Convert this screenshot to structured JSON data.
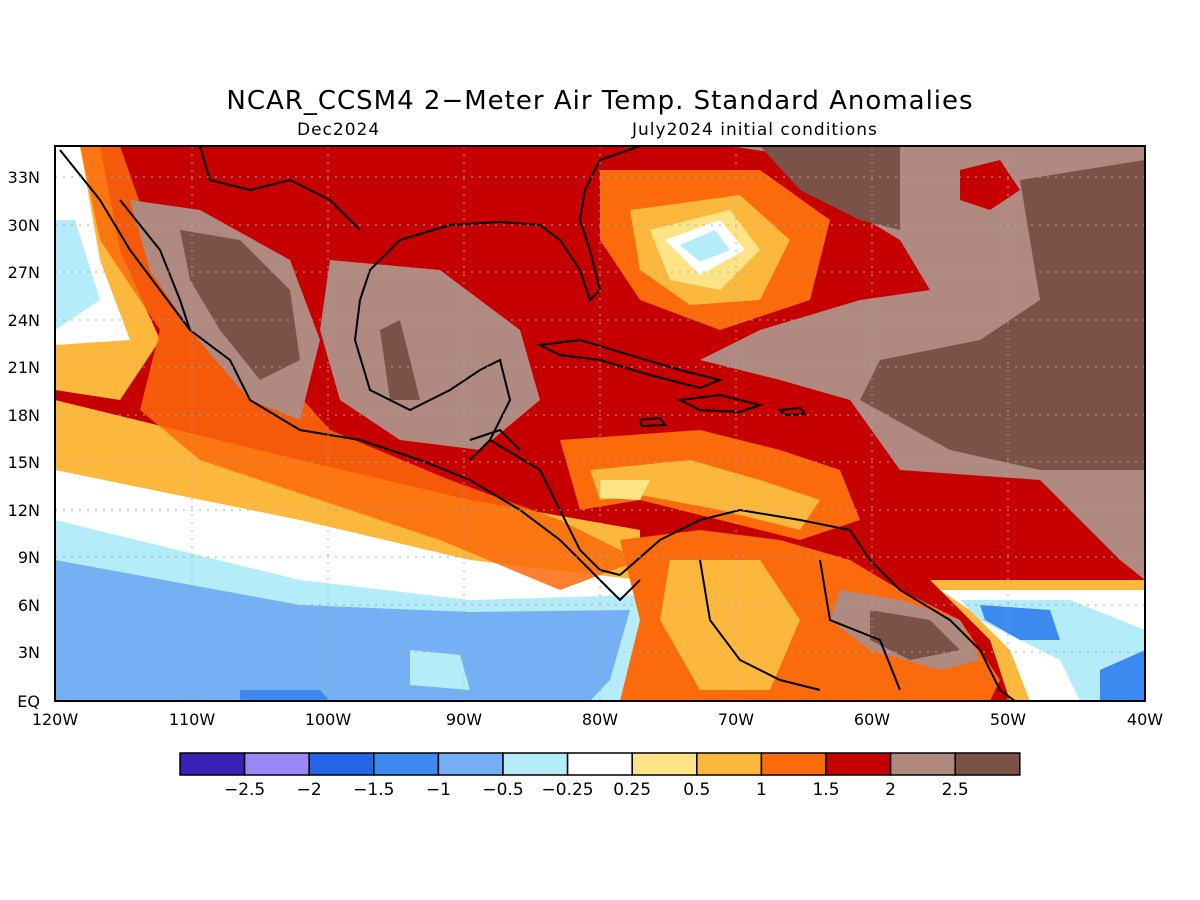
{
  "header": {
    "title": "NCAR_CCSM4 2−Meter Air Temp. Standard Anomalies",
    "valid_month": "Dec2024",
    "init_conditions": "July2024 initial conditions"
  },
  "map": {
    "lat_labels": [
      "33N",
      "30N",
      "27N",
      "24N",
      "21N",
      "18N",
      "15N",
      "12N",
      "9N",
      "6N",
      "3N",
      "EQ"
    ],
    "lon_labels": [
      "120W",
      "110W",
      "100W",
      "90W",
      "80W",
      "70W",
      "60W",
      "50W",
      "40W"
    ]
  },
  "colorbar": {
    "colors": [
      "#3a1fb4",
      "#9b86f6",
      "#2366e6",
      "#3c8af0",
      "#76b0f4",
      "#b4ecfa",
      "#ffffff",
      "#fde587",
      "#fcb83c",
      "#fb6a0b",
      "#c60000",
      "#b08a80",
      "#7a5248"
    ],
    "labels": [
      "−2.5",
      "−2",
      "−1.5",
      "−1",
      "−0.5",
      "−0.25",
      "0.25",
      "0.5",
      "1",
      "1.5",
      "2",
      "2.5"
    ]
  }
}
